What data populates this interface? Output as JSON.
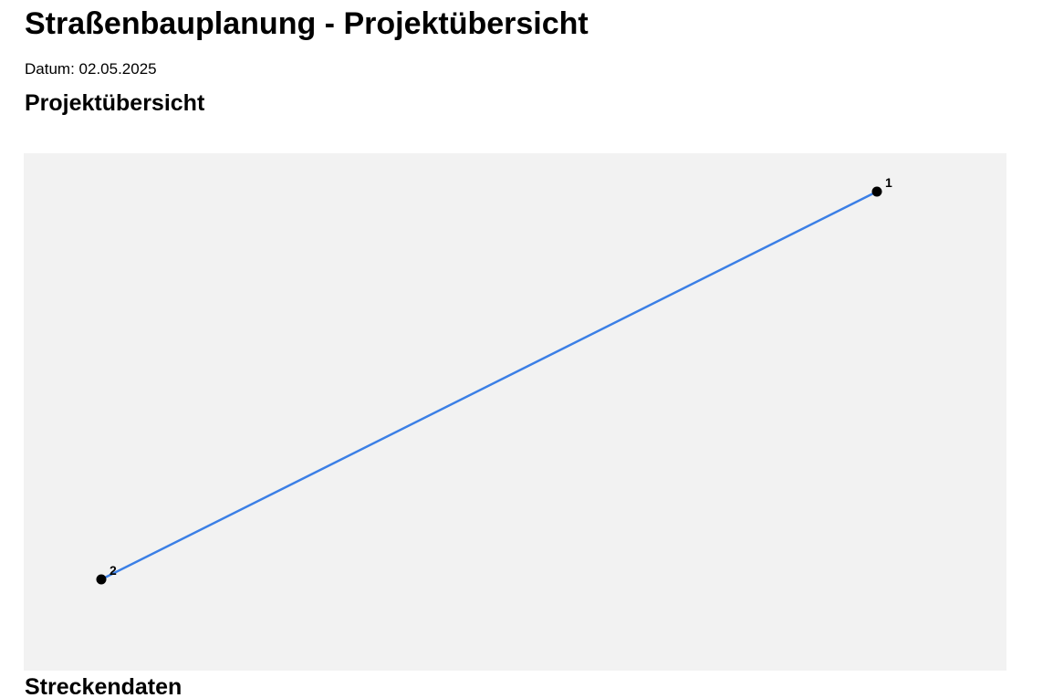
{
  "page": {
    "title": "Straßenbauplanung - Projektübersicht",
    "date_label": "Datum:",
    "date_value": "02.05.2025",
    "overview_heading": "Projektübersicht",
    "route_heading": "Streckendaten"
  },
  "map": {
    "background_color": "#f2f2f2",
    "route_color": "#3b7fe6",
    "marker_color": "#000000",
    "points": [
      {
        "label": "1"
      },
      {
        "label": "2"
      }
    ]
  }
}
